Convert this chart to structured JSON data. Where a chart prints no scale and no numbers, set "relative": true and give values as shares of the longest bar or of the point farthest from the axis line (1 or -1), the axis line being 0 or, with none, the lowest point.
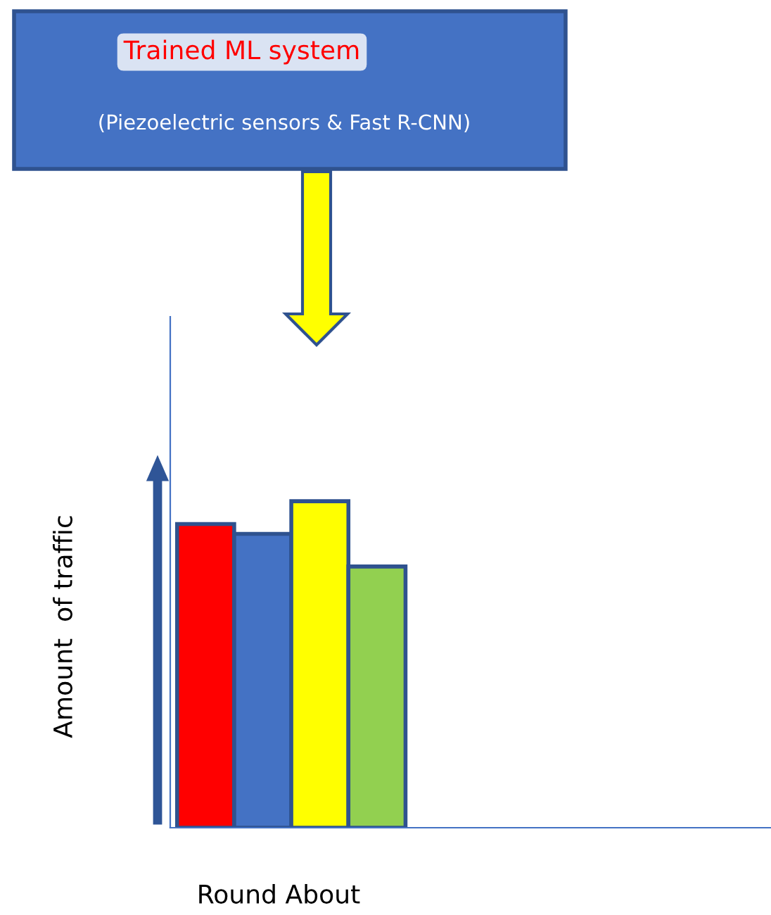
{
  "chart_data": {
    "type": "bar",
    "title": "Trained ML system",
    "subtitle": "(Piezoelectric sensors & Fast R-CNN)",
    "xlabel": "Round About",
    "ylabel": "Amount  of traffic",
    "categories": [
      null,
      null,
      null,
      null
    ],
    "values": [
      0.93,
      0.9,
      1,
      0.8
    ],
    "colors": [
      "#ff0000",
      "#4472c4",
      "#ffff00",
      "#92d050"
    ],
    "relative": true,
    "grid": false,
    "legend": false
  }
}
